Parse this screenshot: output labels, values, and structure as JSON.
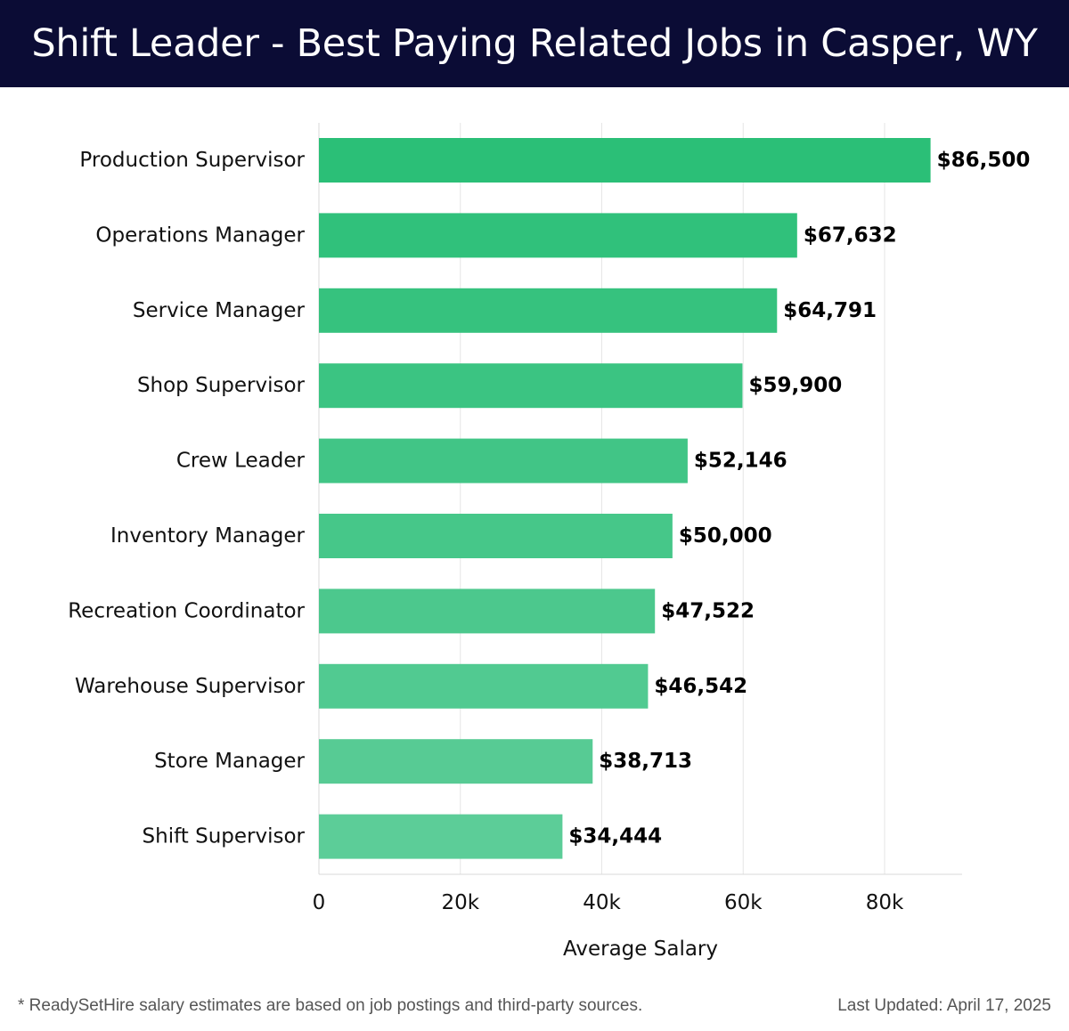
{
  "header": {
    "title": "Shift Leader - Best Paying Related Jobs in Casper, WY"
  },
  "footer": {
    "note": "* ReadySetHire salary estimates are based on job postings and third-party sources.",
    "updated": "Last Updated: April 17, 2025"
  },
  "colors": {
    "header_bg": "#0b0c35",
    "bar_top": "#2bbf77",
    "bar_bottom": "#5ccd98"
  },
  "chart_data": {
    "type": "bar",
    "orientation": "horizontal",
    "categories": [
      "Production Supervisor",
      "Operations Manager",
      "Service Manager",
      "Shop Supervisor",
      "Crew Leader",
      "Inventory Manager",
      "Recreation Coordinator",
      "Warehouse Supervisor",
      "Store Manager",
      "Shift Supervisor"
    ],
    "values": [
      86500,
      67632,
      64791,
      59900,
      52146,
      50000,
      47522,
      46542,
      38713,
      34444
    ],
    "value_labels": [
      "$86,500",
      "$67,632",
      "$64,791",
      "$59,900",
      "$52,146",
      "$50,000",
      "$47,522",
      "$46,542",
      "$38,713",
      "$34,444"
    ],
    "xticks": [
      0,
      20000,
      40000,
      60000,
      80000
    ],
    "xtick_labels": [
      "0",
      "20k",
      "40k",
      "60k",
      "80k"
    ],
    "xlim": [
      0,
      91000
    ],
    "xlabel": "Average Salary",
    "ylabel": "",
    "grid": true,
    "legend": "none"
  }
}
